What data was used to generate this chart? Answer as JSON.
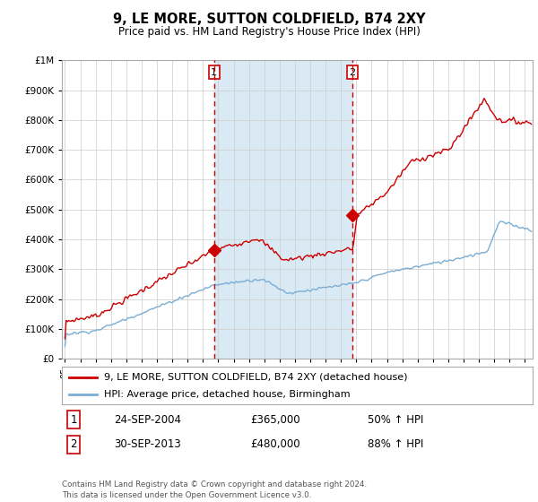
{
  "title": "9, LE MORE, SUTTON COLDFIELD, B74 2XY",
  "subtitle": "Price paid vs. HM Land Registry's House Price Index (HPI)",
  "legend_line1": "9, LE MORE, SUTTON COLDFIELD, B74 2XY (detached house)",
  "legend_line2": "HPI: Average price, detached house, Birmingham",
  "annotation1_date": "24-SEP-2004",
  "annotation1_price": "£365,000",
  "annotation1_hpi": "50% ↑ HPI",
  "annotation2_date": "30-SEP-2013",
  "annotation2_price": "£480,000",
  "annotation2_hpi": "88% ↑ HPI",
  "footnote": "Contains HM Land Registry data © Crown copyright and database right 2024.\nThis data is licensed under the Open Government Licence v3.0.",
  "red_color": "#cc0000",
  "blue_color": "#7aadd4",
  "bg_shade_color": "#daeaf5",
  "marker1_y": 365000,
  "marker2_y": 480000,
  "vline1_x": 2004.73,
  "vline2_x": 2013.75,
  "ylim": [
    0,
    1000000
  ],
  "xlim_start": 1994.8,
  "xlim_end": 2025.5
}
